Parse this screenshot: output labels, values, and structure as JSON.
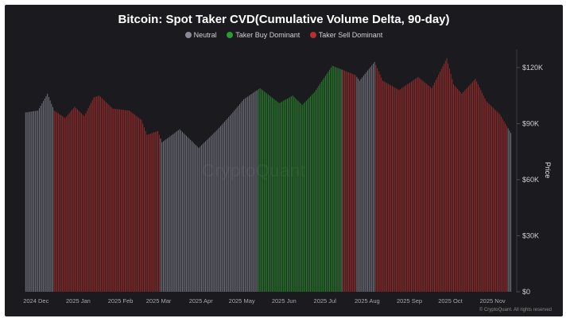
{
  "chart_data": {
    "type": "bar",
    "title": "Bitcoin: Spot Taker CVD(Cumulative Volume Delta, 90-day)",
    "legend": [
      {
        "label": "Neutral",
        "color": "#8a8a96"
      },
      {
        "label": "Taker Buy Dominant",
        "color": "#2e9a32"
      },
      {
        "label": "Taker Sell Dominant",
        "color": "#b5302f"
      }
    ],
    "legend_position": "top-center",
    "xlabel": "",
    "ylabel": "Price",
    "ylim": [
      0,
      130000
    ],
    "y_ticks": [
      0,
      30000,
      60000,
      90000,
      120000
    ],
    "y_tick_labels": [
      "$0",
      "$30K",
      "$60K",
      "$90K",
      "$120K"
    ],
    "x_ticks": [
      "2024 Dec",
      "2025 Jan",
      "2025 Feb",
      "2025 Mar",
      "2025 Apr",
      "2025 May",
      "2025 Jun",
      "2025 Jul",
      "2025 Aug",
      "2025 Sep",
      "2025 Oct",
      "2025 Nov"
    ],
    "grid": false,
    "series": [
      {
        "name": "Neutral",
        "color": "#8a8a96",
        "ranges": [
          {
            "start": "2024-12-01",
            "end": "2024-12-21"
          },
          {
            "start": "2025-03-10",
            "end": "2025-05-20"
          },
          {
            "start": "2025-07-21",
            "end": "2025-07-21"
          },
          {
            "start": "2025-08-01",
            "end": "2025-08-14"
          },
          {
            "start": "2025-11-20",
            "end": "2025-11-22"
          }
        ]
      },
      {
        "name": "Taker Buy Dominant",
        "color": "#2e9a32",
        "ranges": [
          {
            "start": "2025-05-21",
            "end": "2025-07-20"
          }
        ]
      },
      {
        "name": "Taker Sell Dominant",
        "color": "#b5302f",
        "ranges": [
          {
            "start": "2024-12-22",
            "end": "2025-03-09"
          },
          {
            "start": "2025-07-22",
            "end": "2025-07-31"
          },
          {
            "start": "2025-08-15",
            "end": "2025-11-19"
          }
        ]
      }
    ],
    "price_points": [
      {
        "date": "2024-12-01",
        "price": 96000
      },
      {
        "date": "2024-12-10",
        "price": 97000
      },
      {
        "date": "2024-12-17",
        "price": 106000
      },
      {
        "date": "2024-12-22",
        "price": 97000
      },
      {
        "date": "2024-12-30",
        "price": 93000
      },
      {
        "date": "2025-01-06",
        "price": 99000
      },
      {
        "date": "2025-01-13",
        "price": 94000
      },
      {
        "date": "2025-01-20",
        "price": 104000
      },
      {
        "date": "2025-01-24",
        "price": 105000
      },
      {
        "date": "2025-02-03",
        "price": 98000
      },
      {
        "date": "2025-02-15",
        "price": 97000
      },
      {
        "date": "2025-02-24",
        "price": 92000
      },
      {
        "date": "2025-02-28",
        "price": 84000
      },
      {
        "date": "2025-03-08",
        "price": 86000
      },
      {
        "date": "2025-03-11",
        "price": 80000
      },
      {
        "date": "2025-03-24",
        "price": 87000
      },
      {
        "date": "2025-04-07",
        "price": 77000
      },
      {
        "date": "2025-04-21",
        "price": 87000
      },
      {
        "date": "2025-05-02",
        "price": 96000
      },
      {
        "date": "2025-05-10",
        "price": 103000
      },
      {
        "date": "2025-05-22",
        "price": 109000
      },
      {
        "date": "2025-06-05",
        "price": 101000
      },
      {
        "date": "2025-06-15",
        "price": 105000
      },
      {
        "date": "2025-06-22",
        "price": 100000
      },
      {
        "date": "2025-07-01",
        "price": 107000
      },
      {
        "date": "2025-07-14",
        "price": 121000
      },
      {
        "date": "2025-07-31",
        "price": 116000
      },
      {
        "date": "2025-08-03",
        "price": 113000
      },
      {
        "date": "2025-08-14",
        "price": 123000
      },
      {
        "date": "2025-08-20",
        "price": 113000
      },
      {
        "date": "2025-09-01",
        "price": 108000
      },
      {
        "date": "2025-09-15",
        "price": 115000
      },
      {
        "date": "2025-09-25",
        "price": 109000
      },
      {
        "date": "2025-10-06",
        "price": 125000
      },
      {
        "date": "2025-10-11",
        "price": 111000
      },
      {
        "date": "2025-10-17",
        "price": 106000
      },
      {
        "date": "2025-10-27",
        "price": 114000
      },
      {
        "date": "2025-11-04",
        "price": 102000
      },
      {
        "date": "2025-11-14",
        "price": 95000
      },
      {
        "date": "2025-11-22",
        "price": 85000
      }
    ]
  },
  "watermark": "CryptoQuant",
  "credit": "© CryptoQuant. All rights reserved"
}
